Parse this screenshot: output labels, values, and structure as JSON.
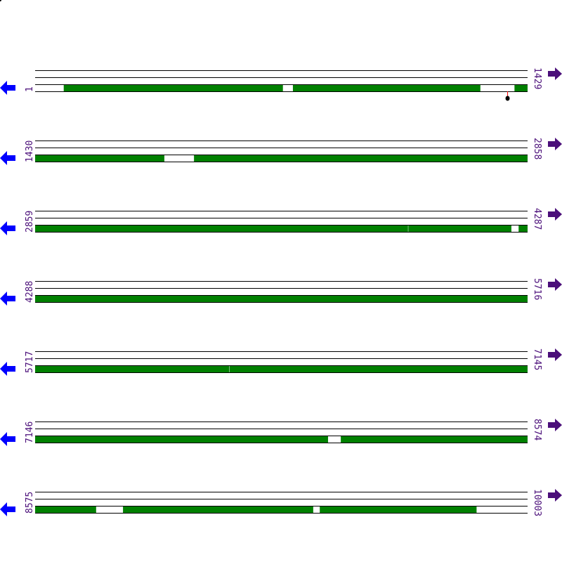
{
  "colors": {
    "coverage": "#008000",
    "line": "#000000",
    "left_arrow": "#0000ff",
    "right_arrow": "#4b0f7a",
    "label": "#4b0f7a",
    "marker_stem": "#ff0000",
    "marker_head": "#000000"
  },
  "icons": {
    "left": "arrow-left-icon",
    "right": "arrow-right-icon"
  },
  "residues_per_row": 1429,
  "rows": [
    {
      "start": "1",
      "end": "1429",
      "segments": [
        [
          84,
          719
        ],
        [
          749,
          1292
        ],
        [
          1392,
          1429
        ]
      ],
      "markers": [
        1372
      ]
    },
    {
      "start": "1430",
      "end": "2858",
      "segments": [
        [
          1430,
          1804
        ],
        [
          1891,
          2858
        ]
      ],
      "markers": []
    },
    {
      "start": "2859",
      "end": "4287",
      "segments": [
        [
          2859,
          3940
        ],
        [
          3942,
          4240
        ],
        [
          4262,
          4287
        ]
      ],
      "markers": []
    },
    {
      "start": "4288",
      "end": "5716",
      "segments": [
        [
          4288,
          5716
        ]
      ],
      "markers": []
    },
    {
      "start": "5717",
      "end": "7145",
      "segments": [
        [
          5717,
          6279
        ],
        [
          6281,
          7145
        ]
      ],
      "markers": []
    },
    {
      "start": "7146",
      "end": "8574",
      "segments": [
        [
          7146,
          7995
        ],
        [
          8033,
          8574
        ]
      ],
      "markers": []
    },
    {
      "start": "8575",
      "end": "10003",
      "segments": [
        [
          8575,
          8751
        ],
        [
          8830,
          9381
        ],
        [
          9401,
          9855
        ]
      ],
      "markers": []
    }
  ]
}
